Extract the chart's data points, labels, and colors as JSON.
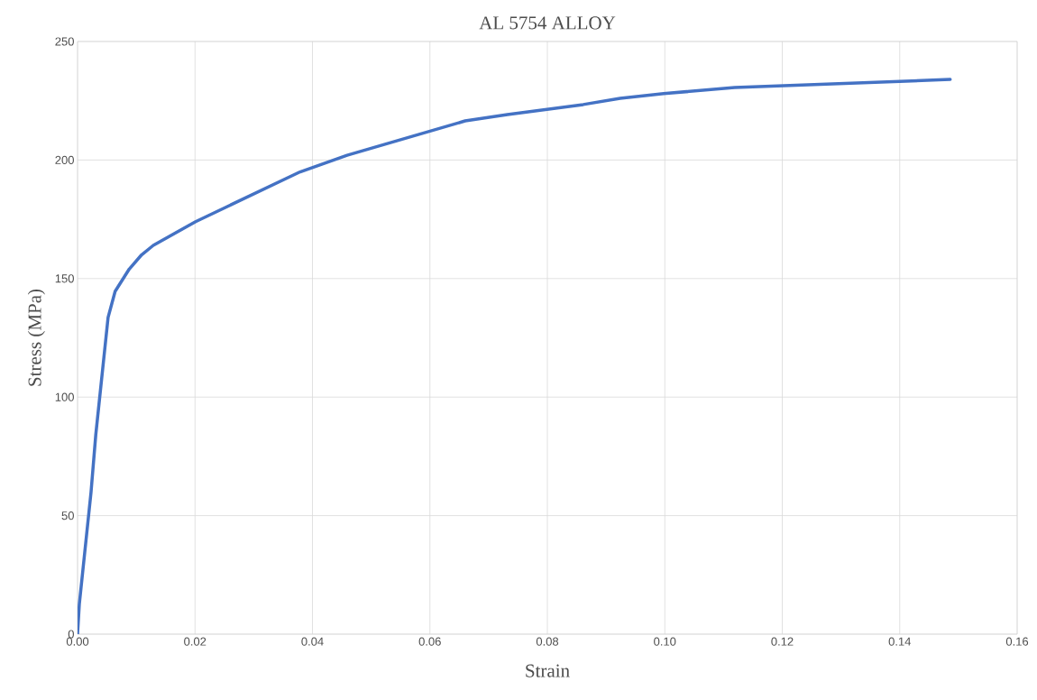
{
  "chart_data": {
    "type": "line",
    "title": "AL 5754 ALLOY",
    "xlabel": "Strain",
    "ylabel": "Stress (MPa)",
    "x": [
      0,
      0.0003,
      0.0023,
      0.0031,
      0.0052,
      0.0064,
      0.0088,
      0.0109,
      0.0129,
      0.0201,
      0.0379,
      0.0459,
      0.066,
      0.0732,
      0.0861,
      0.0924,
      0.0998,
      0.1119,
      0.1486
    ],
    "series": [
      {
        "color": "#4472c4",
        "values": [
          0,
          12.6,
          60,
          84,
          133.6,
          144.6,
          154,
          160,
          164,
          174,
          195,
          202,
          216.5,
          219.2,
          223.4,
          226,
          228,
          230.6,
          234
        ]
      }
    ],
    "xlim": [
      0,
      0.16
    ],
    "ylim": [
      0,
      250
    ],
    "xticks": [
      {
        "value": 0,
        "label": "0.00"
      },
      {
        "value": 0.02,
        "label": "0.02"
      },
      {
        "value": 0.04,
        "label": "0.04"
      },
      {
        "value": 0.06,
        "label": "0.06"
      },
      {
        "value": 0.08,
        "label": "0.08"
      },
      {
        "value": 0.1,
        "label": "0.10"
      },
      {
        "value": 0.12,
        "label": "0.12"
      },
      {
        "value": 0.14,
        "label": "0.14"
      },
      {
        "value": 0.16,
        "label": "0.16"
      }
    ],
    "yticks": [
      0,
      50,
      100,
      150,
      200,
      250
    ],
    "grid": true,
    "marker": "none",
    "line_style": "solid"
  }
}
